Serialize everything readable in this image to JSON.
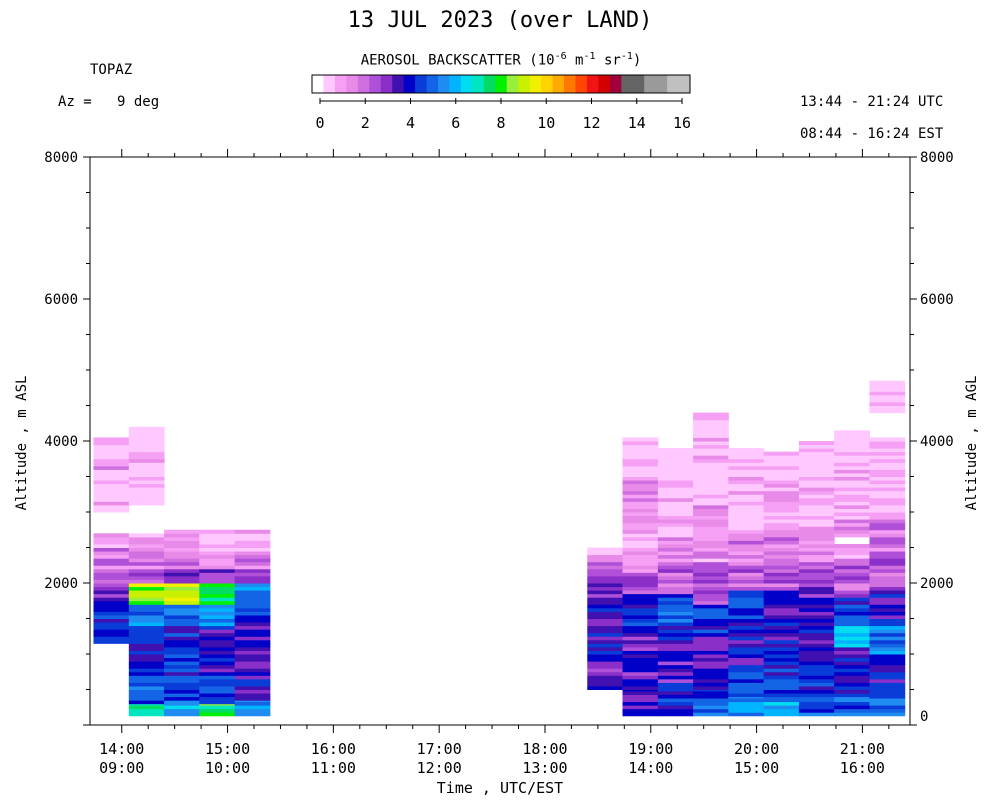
{
  "title": "13 JUL 2023 (over LAND)",
  "instrument": "TOPAZ",
  "azimuth_label": "Az =   9 deg",
  "time_range_utc": "13:44 - 21:24 UTC",
  "time_range_est": "08:44 - 16:24 EST",
  "colorbar": {
    "title_prefix": "AEROSOL BACKSCATTER (10",
    "title_exp1": "-6",
    "title_mid1": " m",
    "title_exp2": "-1",
    "title_mid2": " sr",
    "title_exp3": "-1",
    "title_suffix": ")",
    "tick_labels": [
      "0",
      "2",
      "4",
      "6",
      "8",
      "10",
      "12",
      "14",
      "16"
    ],
    "colors": [
      "#ffffff",
      "#ffc8ff",
      "#f5a0f5",
      "#e88ae8",
      "#d070e0",
      "#b050d8",
      "#8a30c8",
      "#4010b0",
      "#0000c8",
      "#0a3cd8",
      "#1464e6",
      "#1e8cf0",
      "#00b4ff",
      "#00dcf0",
      "#00e6be",
      "#00dc64",
      "#00f000",
      "#96f03c",
      "#c8f000",
      "#f0f000",
      "#ffd200",
      "#ffaa00",
      "#ff7800",
      "#ff4600",
      "#f01414",
      "#d20000",
      "#a0003c",
      "#646464",
      "#646464",
      "#9a9a9a",
      "#9a9a9a",
      "#c0c0c0",
      "#c0c0c0"
    ]
  },
  "chart_data": {
    "type": "heatmap",
    "x_label": "Time , UTC/EST",
    "y_label_left": "Altitude , m ASL",
    "y_label_right": "Altitude , m AGL",
    "x_ticks": [
      {
        "hour": 14,
        "utc": "14:00",
        "est": "09:00"
      },
      {
        "hour": 15,
        "utc": "15:00",
        "est": "10:00"
      },
      {
        "hour": 16,
        "utc": "16:00",
        "est": "11:00"
      },
      {
        "hour": 17,
        "utc": "17:00",
        "est": "12:00"
      },
      {
        "hour": 18,
        "utc": "18:00",
        "est": "13:00"
      },
      {
        "hour": 19,
        "utc": "19:00",
        "est": "14:00"
      },
      {
        "hour": 20,
        "utc": "20:00",
        "est": "15:00"
      },
      {
        "hour": 21,
        "utc": "21:00",
        "est": "16:00"
      }
    ],
    "y_left_ticks": [
      {
        "value": 2000,
        "label": "2000"
      },
      {
        "value": 4000,
        "label": "4000"
      },
      {
        "value": 6000,
        "label": "6000"
      },
      {
        "value": 8000,
        "label": "8000"
      }
    ],
    "y_right_ticks": [
      {
        "value": 130,
        "label": "0"
      },
      {
        "value": 2000,
        "label": "2000"
      },
      {
        "value": 4000,
        "label": "4000"
      },
      {
        "value": 6000,
        "label": "6000"
      },
      {
        "value": 8000,
        "label": "8000"
      }
    ],
    "x_range_hours": [
      13.7,
      21.45
    ],
    "y_range_m": [
      0,
      8000
    ],
    "color_scale_range": [
      0,
      16
    ],
    "profiles": [
      {
        "t0": 13.733,
        "t1": 14.067,
        "bottom": 1150,
        "top": 4050,
        "layers": [
          [
            1150,
            1700,
            4.5
          ],
          [
            1700,
            1950,
            3.5
          ],
          [
            1950,
            2200,
            2.5
          ],
          [
            2200,
            2500,
            1.8
          ],
          [
            2500,
            2700,
            1.2
          ],
          [
            3000,
            3600,
            0.7
          ],
          [
            3600,
            3700,
            1.6
          ],
          [
            3700,
            4050,
            0.8
          ]
        ]
      },
      {
        "t0": 14.067,
        "t1": 14.4,
        "bottom": 130,
        "top": 4200,
        "layers": [
          [
            130,
            300,
            7.5
          ],
          [
            300,
            700,
            5.0
          ],
          [
            700,
            1400,
            4.0
          ],
          [
            1400,
            1700,
            5.5
          ],
          [
            1700,
            2000,
            8.5
          ],
          [
            2000,
            2200,
            3.0
          ],
          [
            2200,
            2550,
            1.8
          ],
          [
            2550,
            2700,
            1.0
          ],
          [
            3100,
            3600,
            0.6
          ],
          [
            3600,
            3750,
            1.6
          ],
          [
            3750,
            4200,
            0.8
          ]
        ]
      },
      {
        "t0": 14.4,
        "t1": 14.733,
        "bottom": 130,
        "top": 2750,
        "layers": [
          [
            130,
            350,
            6.0
          ],
          [
            350,
            700,
            5.0
          ],
          [
            700,
            1400,
            4.5
          ],
          [
            1400,
            1700,
            5.5
          ],
          [
            1700,
            2000,
            9.0
          ],
          [
            2000,
            2200,
            3.0
          ],
          [
            2200,
            2450,
            1.8
          ],
          [
            2450,
            2750,
            1.0
          ]
        ]
      },
      {
        "t0": 14.733,
        "t1": 15.067,
        "bottom": 130,
        "top": 2750,
        "layers": [
          [
            130,
            300,
            7.5
          ],
          [
            300,
            700,
            4.5
          ],
          [
            700,
            1400,
            4.0
          ],
          [
            1400,
            1700,
            6.0
          ],
          [
            1700,
            2000,
            7.5
          ],
          [
            2000,
            2200,
            3.0
          ],
          [
            2200,
            2450,
            1.8
          ],
          [
            2450,
            2750,
            1.0
          ]
        ]
      },
      {
        "t0": 15.067,
        "t1": 15.4,
        "bottom": 130,
        "top": 2750,
        "layers": [
          [
            130,
            350,
            5.5
          ],
          [
            350,
            800,
            4.0
          ],
          [
            800,
            1400,
            3.5
          ],
          [
            1400,
            1700,
            4.5
          ],
          [
            1700,
            2000,
            5.5
          ],
          [
            2000,
            2200,
            2.8
          ],
          [
            2200,
            2450,
            1.8
          ],
          [
            2450,
            2750,
            1.0
          ]
        ]
      },
      {
        "t0": 18.4,
        "t1": 18.733,
        "bottom": 500,
        "top": 2500,
        "layers": [
          [
            500,
            1000,
            3.5
          ],
          [
            1000,
            1700,
            3.8
          ],
          [
            1700,
            2100,
            3.5
          ],
          [
            2100,
            2300,
            2.5
          ],
          [
            2300,
            2500,
            1.6
          ]
        ]
      },
      {
        "t0": 18.733,
        "t1": 19.067,
        "bottom": 130,
        "top": 4050,
        "layers": [
          [
            130,
            500,
            4.0
          ],
          [
            500,
            1300,
            3.5
          ],
          [
            1300,
            1850,
            4.5
          ],
          [
            1850,
            2100,
            3.0
          ],
          [
            2100,
            2500,
            1.8
          ],
          [
            2500,
            3100,
            1.2
          ],
          [
            3100,
            3500,
            1.8
          ],
          [
            3500,
            3800,
            0.9
          ],
          [
            3800,
            4050,
            0.6
          ]
        ]
      },
      {
        "t0": 19.067,
        "t1": 19.4,
        "bottom": 130,
        "top": 3900,
        "layers": [
          [
            130,
            600,
            4.5
          ],
          [
            600,
            1150,
            3.5
          ],
          [
            1150,
            1400,
            4.0
          ],
          [
            1400,
            1850,
            5.0
          ],
          [
            1850,
            2300,
            2.5
          ],
          [
            2300,
            2700,
            1.6
          ],
          [
            2700,
            3500,
            1.0
          ],
          [
            3500,
            3900,
            0.6
          ]
        ]
      },
      {
        "t0": 19.4,
        "t1": 19.733,
        "bottom": 130,
        "top": 4400,
        "layers": [
          [
            130,
            500,
            4.8
          ],
          [
            500,
            1300,
            3.5
          ],
          [
            1300,
            1700,
            4.5
          ],
          [
            1700,
            2300,
            2.5
          ],
          [
            2300,
            2800,
            1.6
          ],
          [
            2800,
            3100,
            2.0
          ],
          [
            3100,
            4400,
            0.8
          ]
        ]
      },
      {
        "t0": 19.733,
        "t1": 20.067,
        "bottom": 130,
        "top": 3900,
        "layers": [
          [
            130,
            400,
            5.5
          ],
          [
            400,
            800,
            4.5
          ],
          [
            800,
            1400,
            4.0
          ],
          [
            1400,
            1900,
            4.5
          ],
          [
            1900,
            2300,
            2.5
          ],
          [
            2300,
            2700,
            1.8
          ],
          [
            2700,
            3500,
            1.0
          ],
          [
            3500,
            3900,
            0.6
          ]
        ]
      },
      {
        "t0": 20.067,
        "t1": 20.4,
        "bottom": 130,
        "top": 3850,
        "layers": [
          [
            130,
            400,
            5.8
          ],
          [
            400,
            800,
            4.5
          ],
          [
            800,
            1400,
            4.0
          ],
          [
            1400,
            1900,
            3.8
          ],
          [
            1900,
            2300,
            2.5
          ],
          [
            2300,
            2700,
            1.8
          ],
          [
            2700,
            3400,
            1.2
          ],
          [
            3400,
            3850,
            0.6
          ]
        ]
      },
      {
        "t0": 20.4,
        "t1": 20.733,
        "bottom": 130,
        "top": 4000,
        "layers": [
          [
            130,
            400,
            5.0
          ],
          [
            400,
            900,
            4.5
          ],
          [
            900,
            1500,
            4.0
          ],
          [
            1500,
            2000,
            3.5
          ],
          [
            2000,
            2300,
            2.5
          ],
          [
            2300,
            2700,
            1.8
          ],
          [
            2700,
            3400,
            1.0
          ],
          [
            3400,
            4000,
            0.6
          ]
        ]
      },
      {
        "t0": 20.733,
        "t1": 21.067,
        "bottom": 130,
        "top": 4150,
        "layers": [
          [
            130,
            400,
            5.0
          ],
          [
            400,
            1100,
            4.0
          ],
          [
            1100,
            1400,
            6.0
          ],
          [
            1400,
            1800,
            4.5
          ],
          [
            1800,
            2300,
            2.5
          ],
          [
            2300,
            2550,
            1.6
          ],
          [
            2650,
            2900,
            1.8
          ],
          [
            2900,
            3600,
            0.8
          ],
          [
            3600,
            4150,
            0.5
          ]
        ]
      },
      {
        "t0": 21.067,
        "t1": 21.4,
        "bottom": 130,
        "top": 4850,
        "layers": [
          [
            130,
            400,
            5.0
          ],
          [
            400,
            1000,
            4.0
          ],
          [
            1000,
            1400,
            5.5
          ],
          [
            1400,
            1900,
            4.0
          ],
          [
            1900,
            2400,
            2.5
          ],
          [
            2400,
            2800,
            2.0
          ],
          [
            2800,
            3000,
            1.8
          ],
          [
            3000,
            4050,
            0.7
          ],
          [
            4400,
            4850,
            0.6
          ]
        ]
      }
    ]
  }
}
